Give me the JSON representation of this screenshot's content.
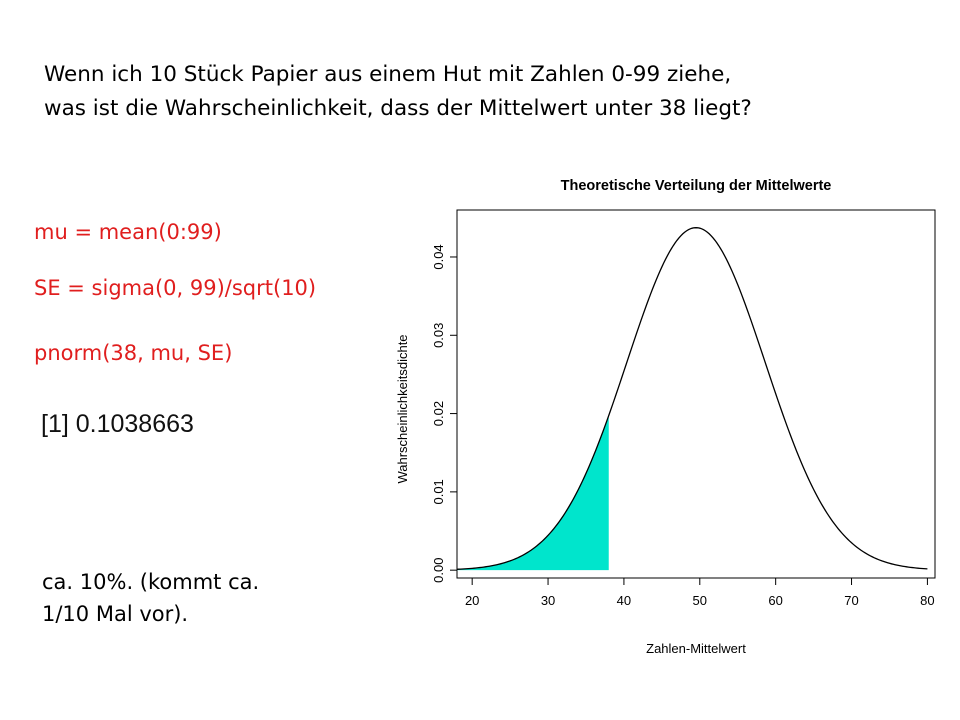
{
  "slide": {
    "question_line1": "Wenn ich 10 Stück Papier aus einem Hut mit Zahlen 0-99 ziehe,",
    "question_line2": "was ist die Wahrscheinlichkeit, dass der Mittelwert unter 38 liegt?",
    "code": [
      "mu = mean(0:99)",
      "SE = sigma(0, 99)/sqrt(10)",
      "pnorm(38, mu, SE)"
    ],
    "result": "[1] 0.1038663",
    "conclusion_line1": "ca. 10%. (kommt ca.",
    "conclusion_line2": "1/10 Mal vor).",
    "code_color": "#e01e1e"
  },
  "chart_data": {
    "type": "line",
    "title": "Theoretische Verteilung der Mittelwerte",
    "xlabel": "Zahlen-Mittelwert",
    "ylabel": "Wahrscheinlichkeitsdichte",
    "distribution": {
      "family": "normal",
      "mean": 49.5,
      "sd": 9.12
    },
    "xlim": [
      18,
      81
    ],
    "ylim": [
      -0.001,
      0.046
    ],
    "x_ticks": [
      "20",
      "30",
      "40",
      "50",
      "60",
      "70",
      "80"
    ],
    "y_ticks": [
      "0.00",
      "0.01",
      "0.02",
      "0.03",
      "0.04"
    ],
    "shaded_region": {
      "from": 18,
      "to": 38,
      "color": "#00e5cc"
    },
    "curve_range": [
      18,
      80
    ],
    "line_color": "#000000",
    "grid": false
  }
}
